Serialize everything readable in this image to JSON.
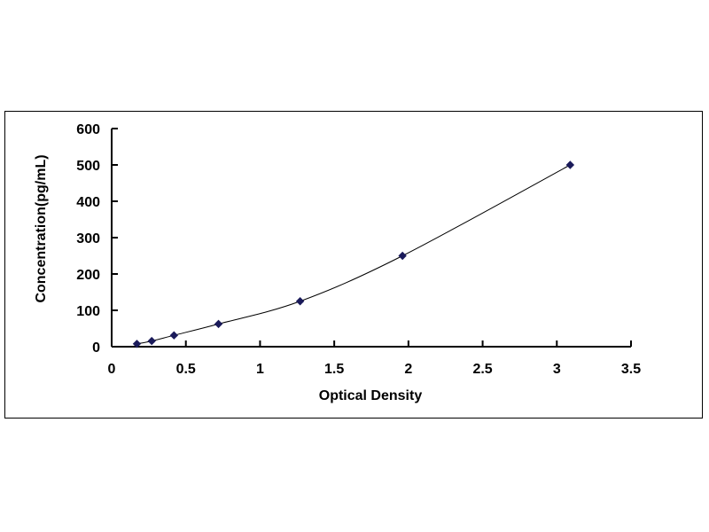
{
  "chart_data": {
    "type": "scatter",
    "title": "",
    "xlabel": "Optical Density",
    "ylabel": "Concentration(pg/mL)",
    "xlim": [
      0,
      3.5
    ],
    "ylim": [
      0,
      600
    ],
    "xticks": [
      0,
      0.5,
      1,
      1.5,
      2,
      2.5,
      3,
      3.5
    ],
    "xtick_labels": [
      "0",
      "0.5",
      "1",
      "1.5",
      "2",
      "2.5",
      "3",
      "3.5"
    ],
    "yticks": [
      0,
      100,
      200,
      300,
      400,
      500,
      600
    ],
    "ytick_labels": [
      "0",
      "100",
      "200",
      "300",
      "400",
      "500",
      "600"
    ],
    "grid": false,
    "smooth_line": true,
    "marker": "diamond",
    "series": [
      {
        "color": "#1a1a5a",
        "x": [
          0.17,
          0.27,
          0.42,
          0.72,
          1.27,
          1.96,
          3.09
        ],
        "y": [
          7.81,
          15.63,
          31.25,
          62.5,
          125,
          250,
          500
        ]
      }
    ]
  }
}
